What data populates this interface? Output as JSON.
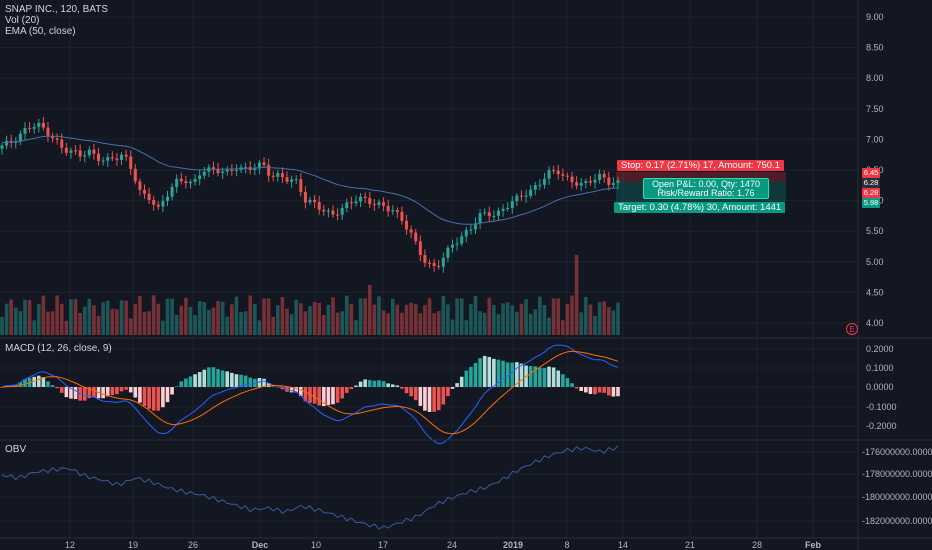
{
  "main_pane": {
    "title": "SNAP INC., 120, BATS",
    "volume_label": "Vol (20)",
    "ema_label": "EMA (50, close)",
    "price_ticks": [
      "9.00",
      "8.50",
      "8.00",
      "7.50",
      "7.00",
      "6.50",
      "6.00",
      "5.50",
      "5.00",
      "4.50",
      "4.00"
    ],
    "price_badges": [
      {
        "text": "6.45",
        "color": "#f23645"
      },
      {
        "text": "6.28",
        "color": "#2a2e39"
      },
      {
        "text": "6.28",
        "color": "#f23645"
      },
      {
        "text": "5.98",
        "color": "#089981"
      }
    ],
    "earnings_icon": "E"
  },
  "position_tool": {
    "stop_label": "Stop: 0.17 (2.71%) 17, Amount: 750.1",
    "target_label": "Target: 0.30 (4.78%) 30, Amount: 1441",
    "open_pnl": "Open P&L: 0.00, Qty: 1470",
    "risk_reward": "Risk/Reward Ratio: 1.76",
    "colors": {
      "stop": "#f23645",
      "target": "#089981"
    }
  },
  "macd_pane": {
    "label": "MACD (12, 26, close, 9)",
    "ticks": [
      "0.2000",
      "0.1000",
      "0.0000",
      "-0.1000",
      "-0.2000"
    ]
  },
  "obv_pane": {
    "label": "OBV",
    "ticks": [
      "-176000000.0000",
      "-178000000.0000",
      "-180000000.0000",
      "-182000000.0000"
    ]
  },
  "time_axis": {
    "ticks": [
      "12",
      "19",
      "26",
      "Dec",
      "10",
      "17",
      "24",
      "2019",
      "8",
      "14",
      "21",
      "28",
      "Feb"
    ]
  },
  "colors": {
    "up": "#26a69a",
    "down": "#ef5350",
    "background": "#131722",
    "ema": "#4a6fa5",
    "macd": "#2962ff",
    "signal": "#ff6d00"
  }
}
